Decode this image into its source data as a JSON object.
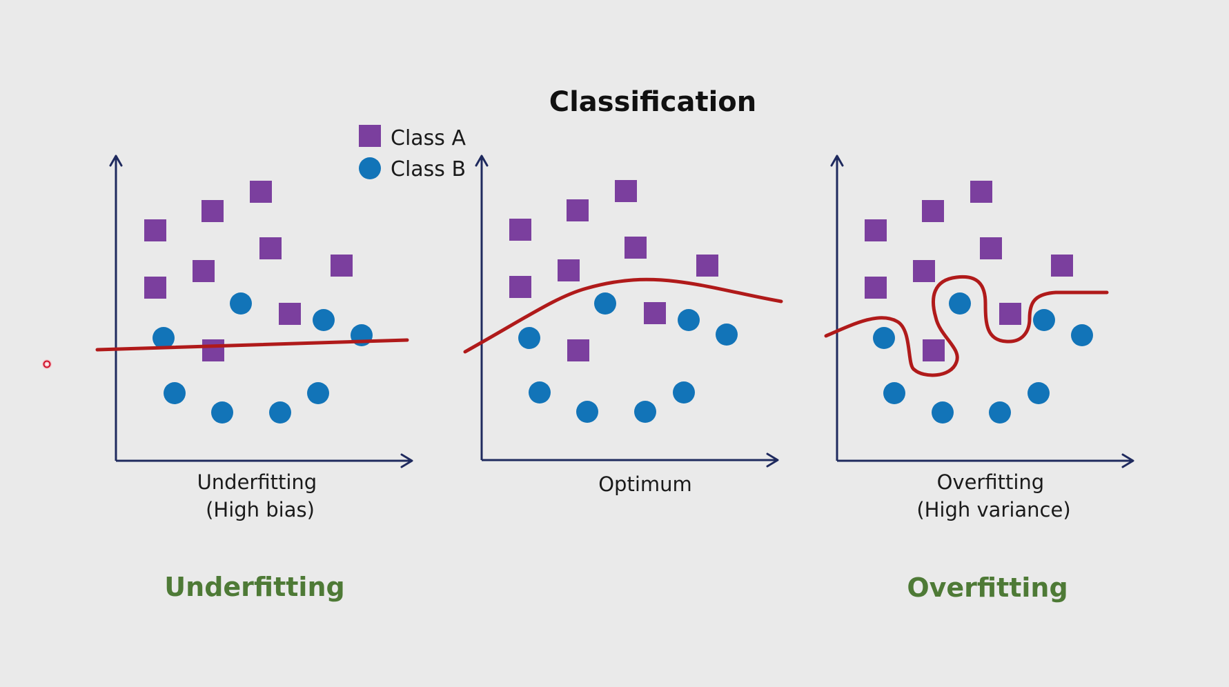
{
  "title": "Classification",
  "legend": {
    "items": [
      {
        "label": "Class A",
        "shape": "square"
      },
      {
        "label": "Class B",
        "shape": "circle"
      }
    ]
  },
  "colors": {
    "class_a": "#7b3f9e",
    "class_b": "#1274b8",
    "boundary": "#b01a1a",
    "axis": "#1f2a5e",
    "verdict": "#4e7a36",
    "pointer_ring": "#d0102a"
  },
  "panels": [
    {
      "caption_lines": [
        "Underfitting",
        "(High bias)"
      ],
      "boundary_shape": "straight-line"
    },
    {
      "caption_lines": [
        "Optimum"
      ],
      "boundary_shape": "smooth-curve"
    },
    {
      "caption_lines": [
        "Overfitting",
        "(High variance)"
      ],
      "boundary_shape": "wiggly-curve"
    }
  ],
  "verdicts": {
    "left": "Underfitting",
    "right": "Overfitting"
  },
  "icons": {
    "cursor": "red-dot-pointer-icon"
  }
}
